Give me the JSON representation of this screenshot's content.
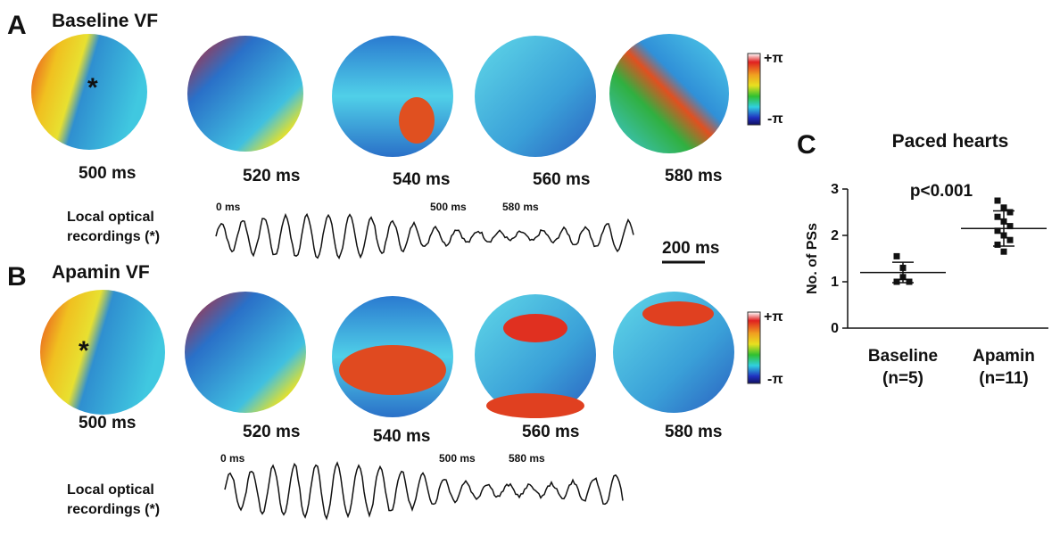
{
  "panels": [
    {
      "letter": "A",
      "title": "Baseline VF",
      "marker": "*",
      "maps": [
        "500 ms",
        "520 ms",
        "540 ms",
        "560 ms",
        "580 ms"
      ],
      "colorbar": {
        "top": "+π",
        "bottom": "-π"
      },
      "trace_label": [
        "Local optical",
        "recordings (*)"
      ],
      "trace_markers": [
        "0 ms",
        "500 ms",
        "580 ms"
      ],
      "scale_bar": "200 ms"
    },
    {
      "letter": "B",
      "title": "Apamin VF",
      "marker": "*",
      "maps": [
        "500 ms",
        "520 ms",
        "540 ms",
        "560 ms",
        "580 ms"
      ],
      "colorbar": {
        "top": "+π",
        "bottom": "-π"
      },
      "trace_label": [
        "Local optical",
        "recordings (*)"
      ],
      "trace_markers": [
        "0 ms",
        "500 ms",
        "580 ms"
      ]
    }
  ],
  "chart_data": {
    "type": "strip",
    "letter": "C",
    "title": "Paced hearts",
    "y_label": "No. of PSs",
    "annotation": "p<0.001",
    "categories": [
      "Baseline",
      "Apamin"
    ],
    "category_sublabels": [
      "(n=5)",
      "(n=11)"
    ],
    "series": [
      {
        "color": "#111111",
        "values": [
          1.55,
          1.3,
          1.0,
          1.0,
          1.1
        ]
      },
      {
        "color": "#111111",
        "values": [
          2.75,
          2.6,
          2.5,
          2.4,
          2.3,
          2.2,
          2.1,
          2.0,
          1.9,
          1.8,
          1.65
        ]
      }
    ],
    "means": [
      1.2,
      2.15
    ],
    "errors": [
      0.22,
      0.38
    ],
    "ylim": [
      0,
      3
    ],
    "yticks": [
      0,
      1,
      2,
      3
    ]
  }
}
